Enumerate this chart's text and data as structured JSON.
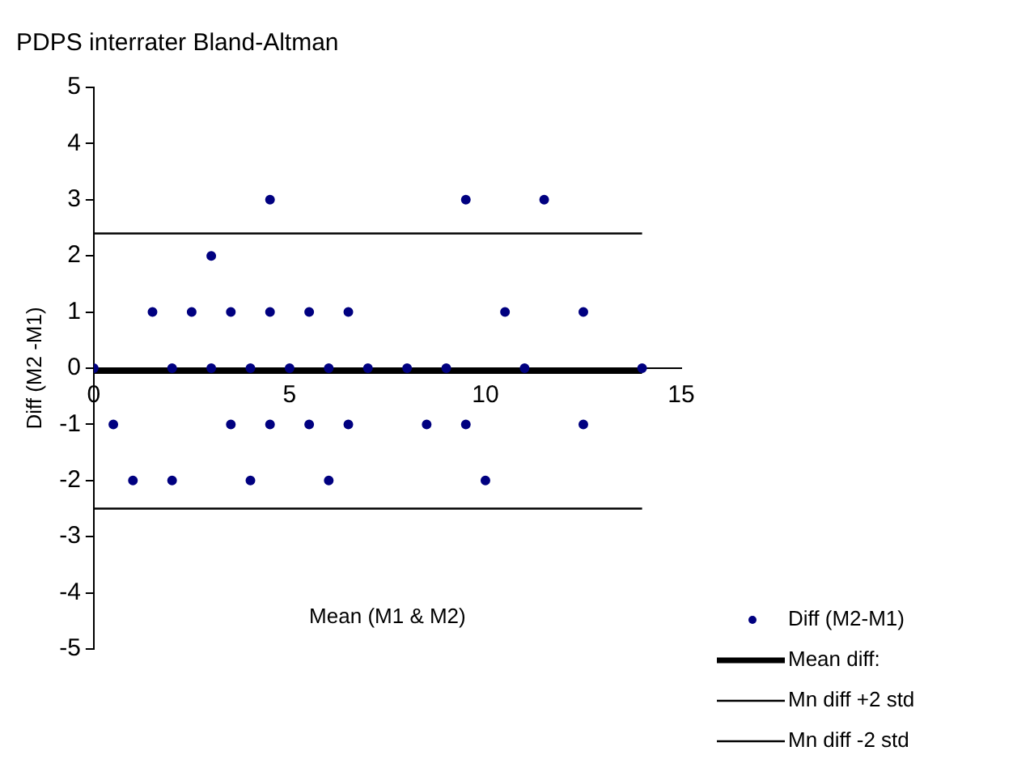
{
  "chart_data": {
    "type": "scatter",
    "title": "PDPS interrater Bland-Altman",
    "xlabel": "Mean (M1 & M2)",
    "ylabel": "Diff (M2 -M1)",
    "xlim": [
      0,
      15
    ],
    "xticks": [
      0,
      5,
      10,
      15
    ],
    "ylim": [
      -5,
      5
    ],
    "yticks": [
      -5,
      -4,
      -3,
      -2,
      -1,
      0,
      1,
      2,
      3,
      4,
      5
    ],
    "grid": false,
    "legend": "bottom right",
    "line_style": "solid",
    "series": [
      {
        "name": "Diff (M2-M1)",
        "marker": "circle",
        "color": "#000080",
        "x": [
          4.5,
          9.5,
          11.5,
          3,
          1.5,
          2.5,
          3.5,
          4.5,
          5.5,
          6.5,
          10.5,
          12.5,
          0,
          2,
          3,
          4,
          5,
          6,
          7,
          8,
          9,
          11,
          14,
          0.5,
          3.5,
          4.5,
          5.5,
          6.5,
          8.5,
          9.5,
          12.5,
          1,
          2,
          4,
          6,
          10
        ],
        "values": [
          3,
          3,
          3,
          2,
          1,
          1,
          1,
          1,
          1,
          1,
          1,
          1,
          0,
          0,
          0,
          0,
          0,
          0,
          0,
          0,
          0,
          0,
          0,
          -1,
          -1,
          -1,
          -1,
          -1,
          -1,
          -1,
          -1,
          -2,
          -2,
          -2,
          -2,
          -2
        ]
      },
      {
        "name": "Mean diff:",
        "type": "line",
        "marker": "none",
        "color": "#000000",
        "x": [
          0,
          14
        ],
        "values": [
          -0.05,
          -0.05
        ]
      },
      {
        "name": "Mn diff +2 std",
        "type": "line",
        "marker": "none",
        "color": "#000000",
        "x": [
          0,
          14
        ],
        "values": [
          2.4,
          2.4
        ]
      },
      {
        "name": "Mn diff -2 std",
        "type": "line",
        "marker": "none",
        "color": "#000000",
        "x": [
          0,
          14
        ],
        "values": [
          -2.5,
          -2.5
        ]
      }
    ]
  }
}
